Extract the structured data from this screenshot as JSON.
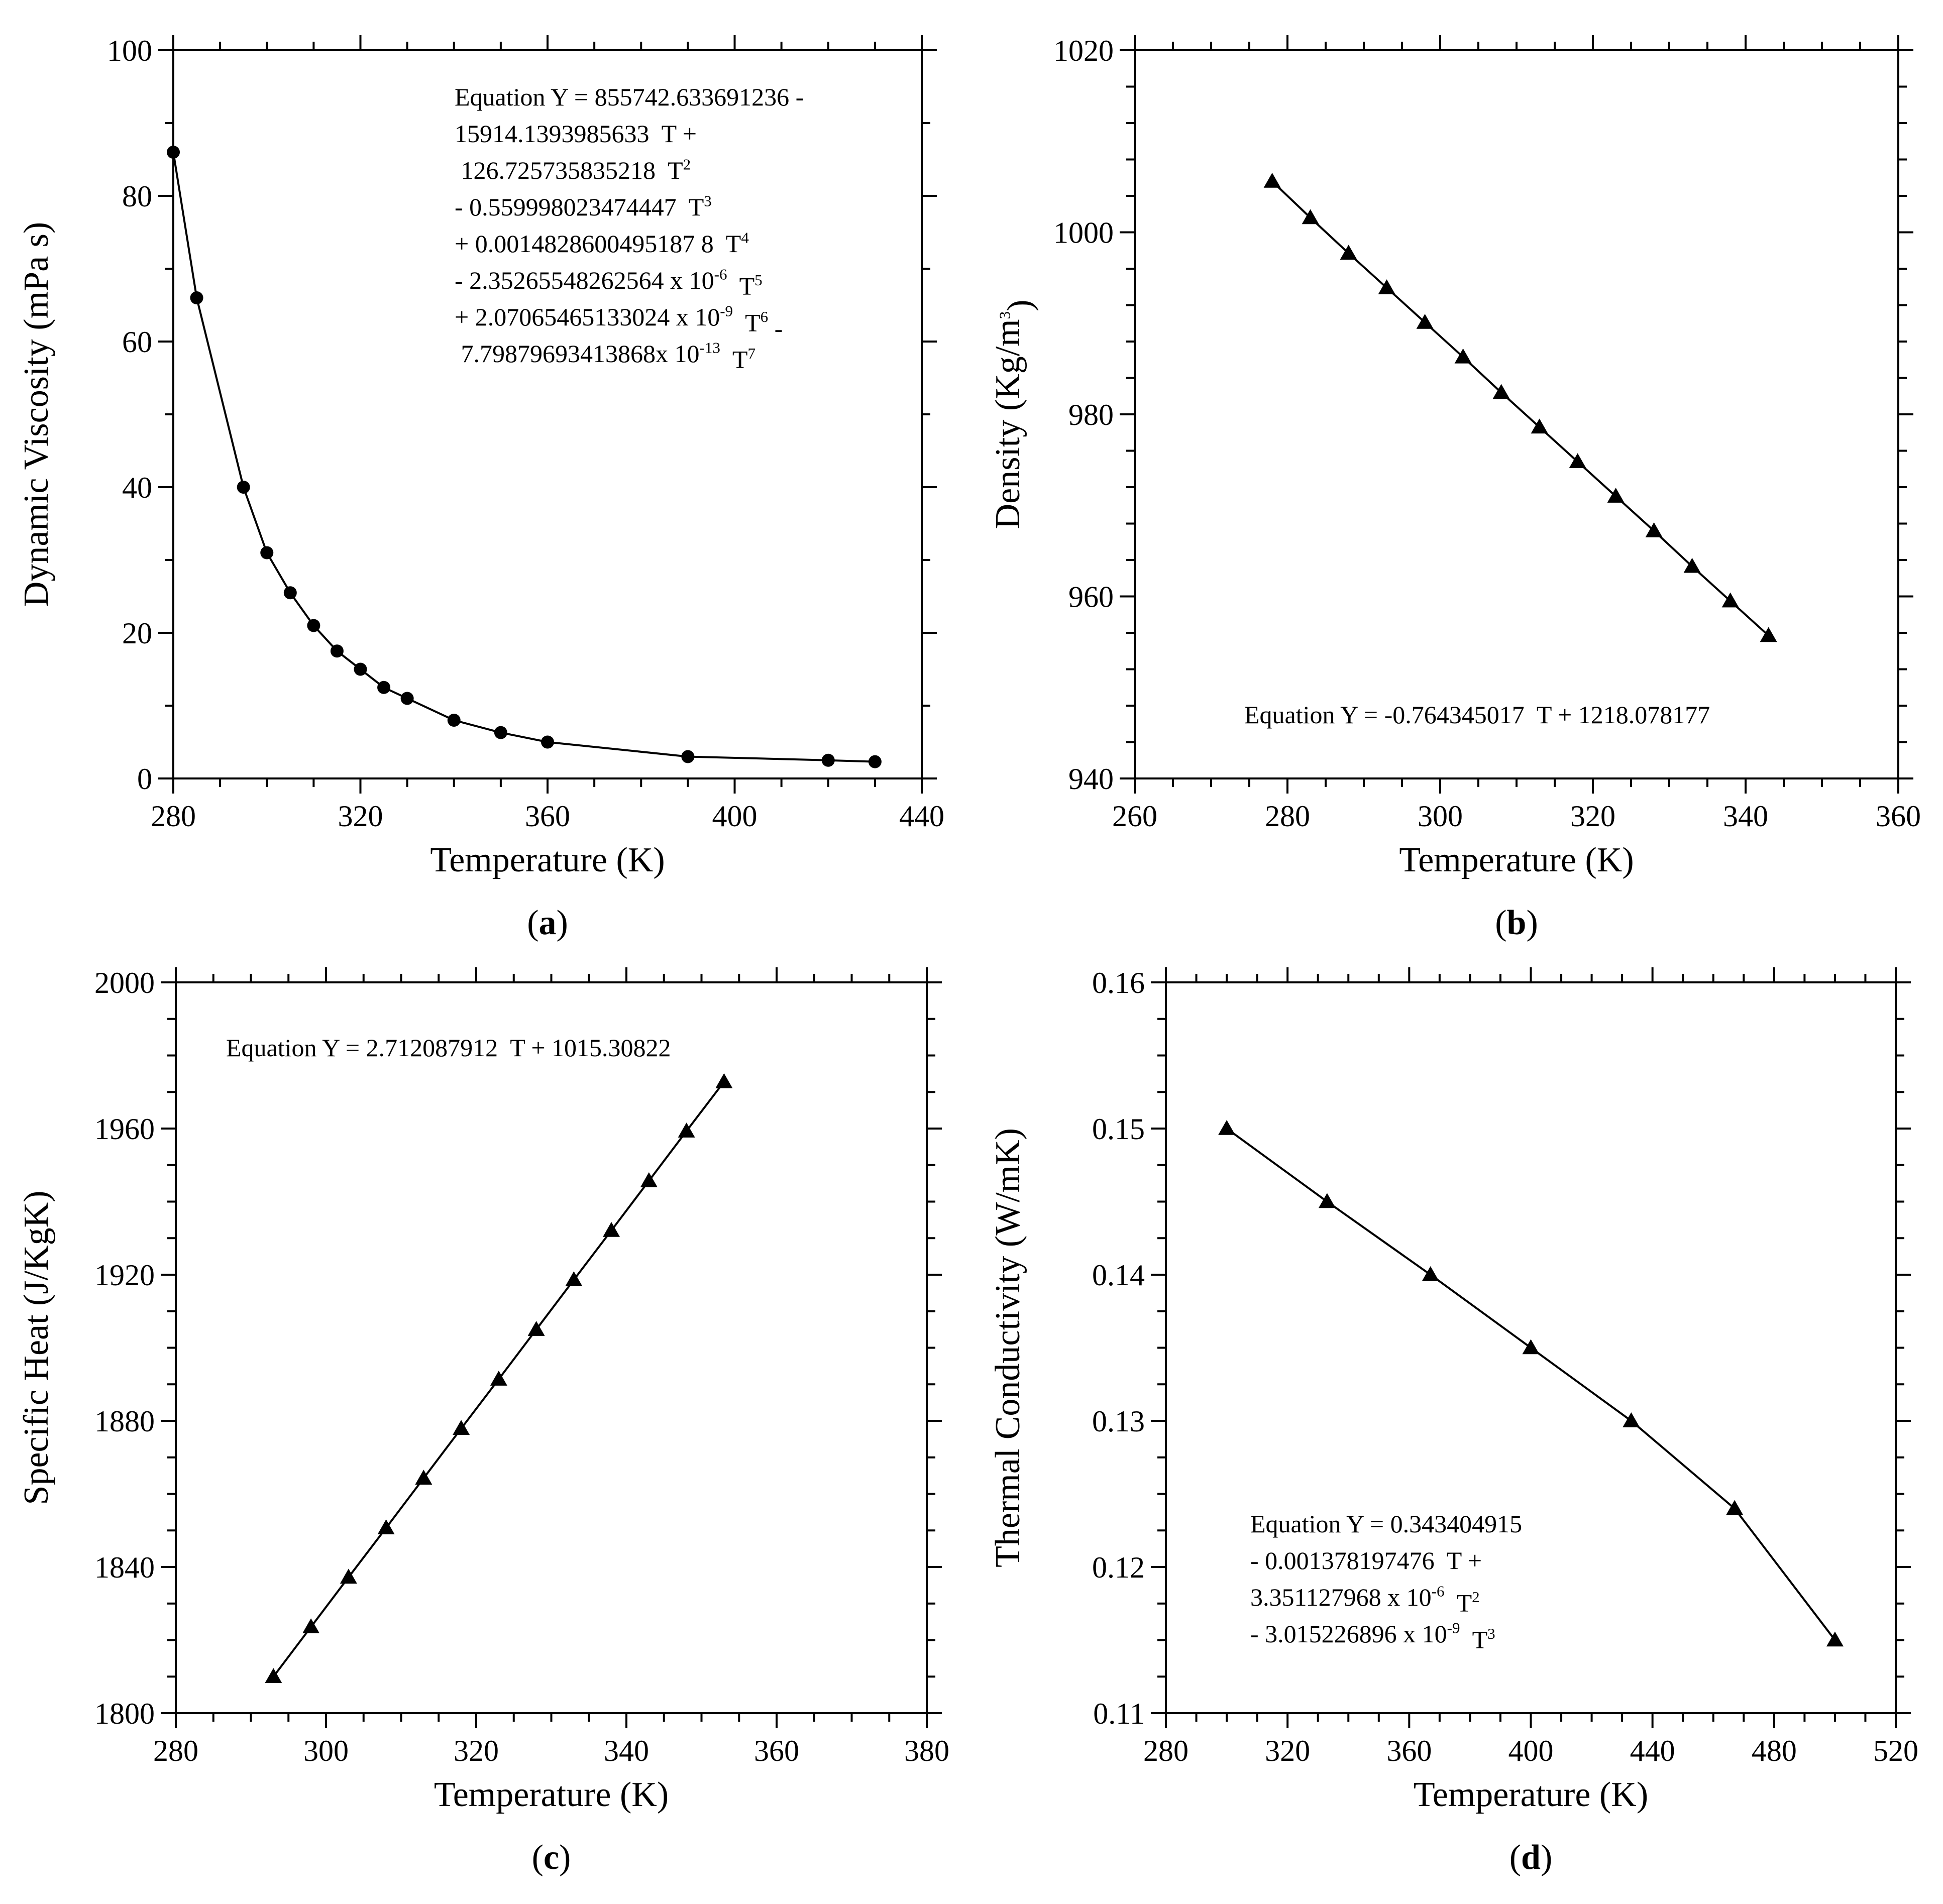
{
  "chart_data": [
    {
      "id": "a",
      "type": "line",
      "label": "a",
      "xlabel": "Temperature (K)",
      "ylabel": "Dynamic Viscosity (mPa s)",
      "xlim": [
        280,
        440
      ],
      "ylim": [
        0,
        100
      ],
      "xticks": [
        280,
        320,
        360,
        400,
        440
      ],
      "yticks": [
        0,
        20,
        40,
        60,
        80,
        100
      ],
      "x_minor_step": 10,
      "y_minor_step": 10,
      "marker": "circle",
      "series": [
        {
          "name": "Dynamic Viscosity",
          "x": [
            280,
            285,
            295,
            300,
            305,
            310,
            315,
            320,
            325,
            330,
            340,
            350,
            360,
            390,
            420,
            430
          ],
          "y": [
            86,
            66,
            40,
            31,
            25.5,
            21,
            17.5,
            15,
            12.5,
            11,
            8,
            6.3,
            5,
            3,
            2.5,
            2.3
          ]
        }
      ],
      "equation_lines": [
        [
          {
            "t": "Equation Y = 855742.633691236 -"
          }
        ],
        [
          {
            "t": "15914.1393985633  T +"
          }
        ],
        [
          {
            "t": " 126.725735835218  T"
          },
          {
            "t": "2",
            "sup": true
          }
        ],
        [
          {
            "t": "- 0.559998023474447  T"
          },
          {
            "t": "3",
            "sup": true
          }
        ],
        [
          {
            "t": "+ 0.0014828600495187 8  T"
          },
          {
            "t": "4",
            "sup": true
          }
        ],
        [
          {
            "t": "- 2.35265548262564 x 10"
          },
          {
            "t": "-6",
            "sup": true
          },
          {
            "t": "  T"
          },
          {
            "t": "5",
            "sup": true
          }
        ],
        [
          {
            "t": "+ 2.07065465133024 x 10"
          },
          {
            "t": "-9",
            "sup": true
          },
          {
            "t": "  T"
          },
          {
            "t": "6",
            "sup": true
          },
          {
            "t": " -"
          }
        ],
        [
          {
            "t": " 7.79879693413868x 10"
          },
          {
            "t": "-13",
            "sup": true
          },
          {
            "t": "  T"
          },
          {
            "t": "7",
            "sup": true
          }
        ]
      ]
    },
    {
      "id": "b",
      "type": "line",
      "label": "b",
      "xlabel": "Temperature (K)",
      "ylabel_parts": [
        {
          "t": "Density (Kg/m"
        },
        {
          "t": "3",
          "sup": true
        },
        {
          "t": ")"
        }
      ],
      "xlim": [
        260,
        360
      ],
      "ylim": [
        940,
        1020
      ],
      "xticks": [
        260,
        280,
        300,
        320,
        340,
        360
      ],
      "yticks": [
        940,
        960,
        980,
        1000,
        1020
      ],
      "x_minor_step": 5,
      "y_minor_step": 4,
      "marker": "triangle",
      "series": [
        {
          "name": "Density",
          "x": [
            278,
            283,
            288,
            293,
            298,
            303,
            308,
            313,
            318,
            323,
            328,
            333,
            338,
            343
          ],
          "y": [
            1005.6,
            1001.6,
            997.7,
            993.9,
            990.1,
            986.3,
            982.4,
            978.6,
            974.8,
            971.0,
            967.2,
            963.3,
            959.5,
            955.7
          ]
        }
      ],
      "equation_lines": [
        [
          {
            "t": "Equation Y = -0.764345017  T + 1218.078177"
          }
        ]
      ]
    },
    {
      "id": "c",
      "type": "line",
      "label": "c",
      "xlabel": "Temperature (K)",
      "ylabel": "Specific Heat (J/KgK)",
      "xlim": [
        280,
        380
      ],
      "ylim": [
        1800,
        2000
      ],
      "xticks": [
        280,
        300,
        320,
        340,
        360,
        380
      ],
      "yticks": [
        1800,
        1840,
        1880,
        1920,
        1960,
        2000
      ],
      "x_minor_step": 5,
      "y_minor_step": 10,
      "marker": "triangle",
      "series": [
        {
          "name": "Specific Heat",
          "x": [
            293,
            298,
            303,
            308,
            313,
            318,
            323,
            328,
            333,
            338,
            343,
            348,
            353
          ],
          "y": [
            1810.0,
            1823.6,
            1837.2,
            1850.7,
            1864.3,
            1877.9,
            1891.4,
            1905.0,
            1918.6,
            1932.1,
            1945.7,
            1959.3,
            1972.8
          ]
        }
      ],
      "equation_lines": [
        [
          {
            "t": "Equation Y = 2.712087912  T + 1015.30822"
          }
        ]
      ]
    },
    {
      "id": "d",
      "type": "line",
      "label": "d",
      "xlabel": "Temperature (K)",
      "ylabel": "Thermal Conductivity (W/mK)",
      "xlim": [
        280,
        520
      ],
      "ylim": [
        0.11,
        0.16
      ],
      "xticks": [
        280,
        320,
        360,
        400,
        440,
        480,
        520
      ],
      "yticks": [
        0.11,
        0.12,
        0.13,
        0.14,
        0.15,
        0.16
      ],
      "y_decimals": 2,
      "x_minor_step": 10,
      "y_minor_step": 0.0025,
      "marker": "triangle",
      "series": [
        {
          "name": "Thermal Conductivity",
          "x": [
            300,
            333,
            367,
            400,
            433,
            467,
            500
          ],
          "y": [
            0.15,
            0.145,
            0.14,
            0.135,
            0.13,
            0.124,
            0.115
          ]
        }
      ],
      "equation_lines": [
        [
          {
            "t": "Equation Y = 0.343404915"
          }
        ],
        [
          {
            "t": "- 0.001378197476  T +"
          }
        ],
        [
          {
            "t": "3.351127968 x 10"
          },
          {
            "t": "-6",
            "sup": true
          },
          {
            "t": "  T"
          },
          {
            "t": "2",
            "sup": true
          }
        ],
        [
          {
            "t": "- 3.015226896 x 10"
          },
          {
            "t": "-9",
            "sup": true
          },
          {
            "t": "  T"
          },
          {
            "t": "3",
            "sup": true
          }
        ]
      ]
    }
  ]
}
